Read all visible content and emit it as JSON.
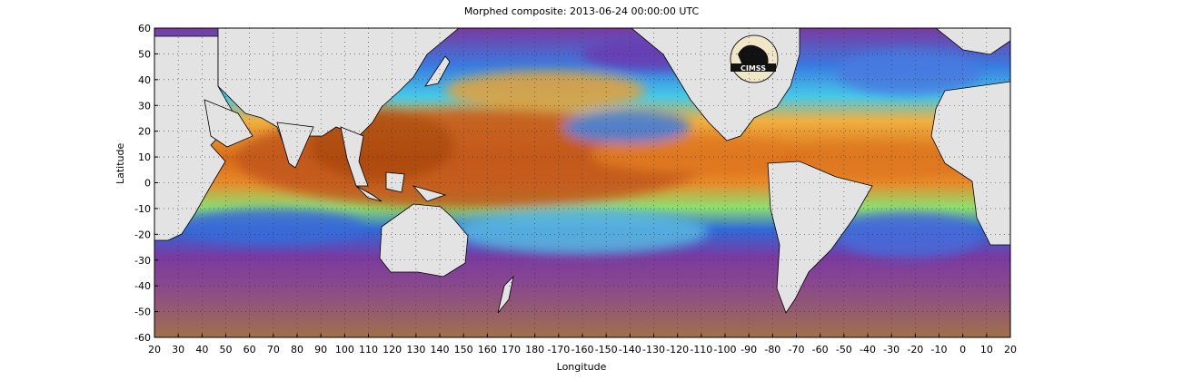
{
  "title": "Morphed composite: 2013-06-24 00:00:00 UTC",
  "xlabel": "Longitude",
  "ylabel": "Latitude",
  "logo_text": "CIMSS",
  "x_ticks": [
    "20",
    "30",
    "40",
    "50",
    "60",
    "70",
    "80",
    "90",
    "100",
    "110",
    "120",
    "130",
    "140",
    "150",
    "160",
    "170",
    "180",
    "-170",
    "-160",
    "-150",
    "-140",
    "-130",
    "-120",
    "-110",
    "-100",
    "-90",
    "-80",
    "-70",
    "-60",
    "-50",
    "-40",
    "-30",
    "-20",
    "-10",
    "0",
    "10",
    "20"
  ],
  "y_ticks": [
    "60",
    "50",
    "40",
    "30",
    "20",
    "10",
    "0",
    "-10",
    "-20",
    "-30",
    "-40",
    "-50",
    "-60"
  ],
  "colors": {
    "very_low": "#a0704a",
    "low": "#7a3aa0",
    "mid_low": "#2f6bd8",
    "mid": "#36c6e8",
    "mid_high": "#9ae06a",
    "high": "#f4a030",
    "very_high": "#b84a10",
    "land": "#e3e3e3"
  }
}
